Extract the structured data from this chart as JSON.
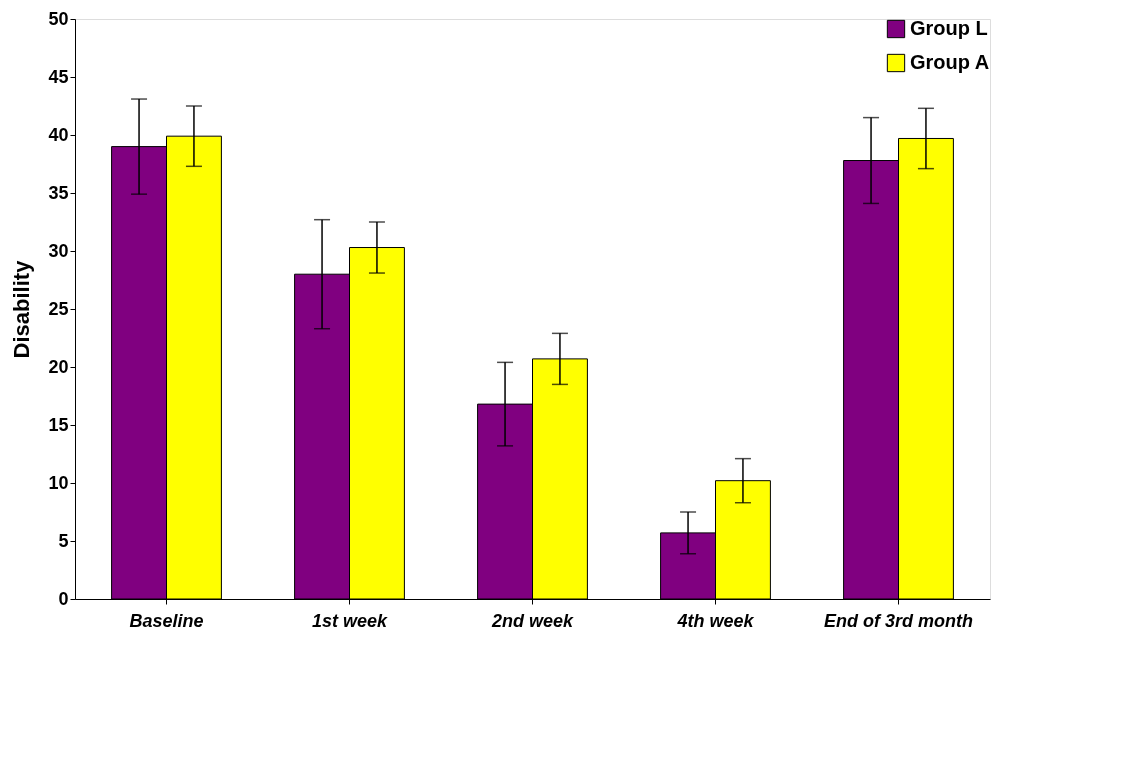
{
  "chart_data": {
    "type": "bar",
    "ylabel": "Disability",
    "categories": [
      "Baseline",
      "1st week",
      "2nd week",
      "4th week",
      "End of 3rd month"
    ],
    "series": [
      {
        "name": "Group L",
        "color": "#800080",
        "values": [
          39.0,
          28.0,
          16.8,
          5.7,
          37.8
        ],
        "errors": [
          4.1,
          4.7,
          3.6,
          1.8,
          3.7
        ]
      },
      {
        "name": "Group A",
        "color": "#ffff00",
        "values": [
          39.9,
          30.3,
          20.7,
          10.2,
          39.7
        ],
        "errors": [
          2.6,
          2.2,
          2.2,
          1.9,
          2.6
        ]
      }
    ],
    "ylim": [
      0,
      50
    ],
    "yticks": [
      0,
      5,
      10,
      15,
      20,
      25,
      30,
      35,
      40,
      45,
      50
    ],
    "grid": false,
    "legend": "top right"
  }
}
